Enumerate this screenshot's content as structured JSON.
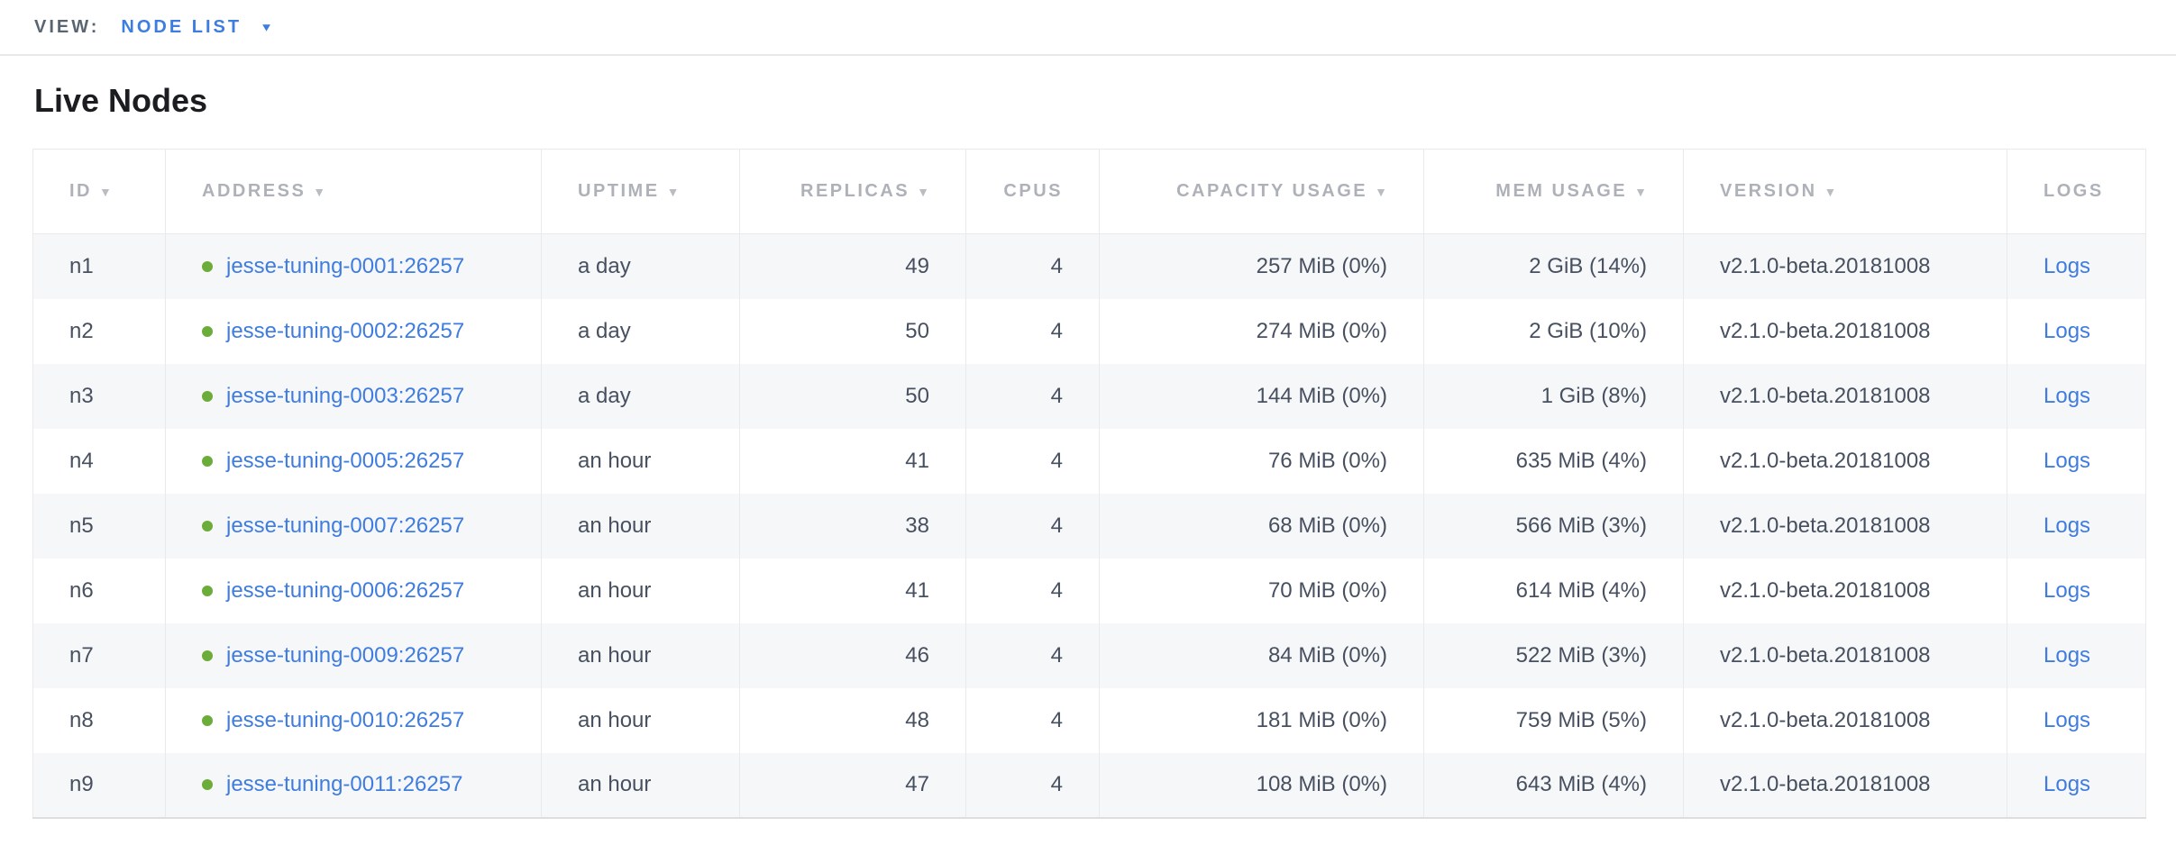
{
  "view_bar": {
    "label": "VIEW:",
    "selected": "NODE LIST"
  },
  "page": {
    "title": "Live Nodes"
  },
  "icons": {
    "sort": "▼",
    "dropdown": "▼",
    "status_dot": "live-green-dot"
  },
  "colors": {
    "accent_blue": "#3e7ce0",
    "live_green": "#6cac3a",
    "header_gray": "#aeb2b8",
    "body_text": "#475060",
    "title_text": "#1b1d21",
    "view_label": "#5a6572",
    "stripe": "#f6f7f8",
    "border": "#e9eaec"
  },
  "table": {
    "columns": [
      {
        "field": "id",
        "label": "ID",
        "sortable": true,
        "align": "left"
      },
      {
        "field": "address",
        "label": "ADDRESS",
        "sortable": true,
        "align": "left"
      },
      {
        "field": "uptime",
        "label": "UPTIME",
        "sortable": true,
        "align": "left"
      },
      {
        "field": "replicas",
        "label": "REPLICAS",
        "sortable": true,
        "align": "right"
      },
      {
        "field": "cpus",
        "label": "CPUS",
        "sortable": false,
        "align": "right"
      },
      {
        "field": "capacity_usage",
        "label": "CAPACITY USAGE",
        "sortable": true,
        "align": "right"
      },
      {
        "field": "mem_usage",
        "label": "MEM USAGE",
        "sortable": true,
        "align": "right"
      },
      {
        "field": "version",
        "label": "VERSION",
        "sortable": true,
        "align": "left"
      },
      {
        "field": "logs",
        "label": "LOGS",
        "sortable": false,
        "align": "left"
      }
    ],
    "rows": [
      {
        "id": "n1",
        "address": "jesse-tuning-0001:26257",
        "uptime": "a day",
        "replicas": "49",
        "cpus": "4",
        "capacity_usage": "257 MiB (0%)",
        "mem_usage": "2 GiB (14%)",
        "version": "v2.1.0-beta.20181008",
        "logs": "Logs"
      },
      {
        "id": "n2",
        "address": "jesse-tuning-0002:26257",
        "uptime": "a day",
        "replicas": "50",
        "cpus": "4",
        "capacity_usage": "274 MiB (0%)",
        "mem_usage": "2 GiB (10%)",
        "version": "v2.1.0-beta.20181008",
        "logs": "Logs"
      },
      {
        "id": "n3",
        "address": "jesse-tuning-0003:26257",
        "uptime": "a day",
        "replicas": "50",
        "cpus": "4",
        "capacity_usage": "144 MiB (0%)",
        "mem_usage": "1 GiB (8%)",
        "version": "v2.1.0-beta.20181008",
        "logs": "Logs"
      },
      {
        "id": "n4",
        "address": "jesse-tuning-0005:26257",
        "uptime": "an hour",
        "replicas": "41",
        "cpus": "4",
        "capacity_usage": "76 MiB (0%)",
        "mem_usage": "635 MiB (4%)",
        "version": "v2.1.0-beta.20181008",
        "logs": "Logs"
      },
      {
        "id": "n5",
        "address": "jesse-tuning-0007:26257",
        "uptime": "an hour",
        "replicas": "38",
        "cpus": "4",
        "capacity_usage": "68 MiB (0%)",
        "mem_usage": "566 MiB (3%)",
        "version": "v2.1.0-beta.20181008",
        "logs": "Logs"
      },
      {
        "id": "n6",
        "address": "jesse-tuning-0006:26257",
        "uptime": "an hour",
        "replicas": "41",
        "cpus": "4",
        "capacity_usage": "70 MiB (0%)",
        "mem_usage": "614 MiB (4%)",
        "version": "v2.1.0-beta.20181008",
        "logs": "Logs"
      },
      {
        "id": "n7",
        "address": "jesse-tuning-0009:26257",
        "uptime": "an hour",
        "replicas": "46",
        "cpus": "4",
        "capacity_usage": "84 MiB (0%)",
        "mem_usage": "522 MiB (3%)",
        "version": "v2.1.0-beta.20181008",
        "logs": "Logs"
      },
      {
        "id": "n8",
        "address": "jesse-tuning-0010:26257",
        "uptime": "an hour",
        "replicas": "48",
        "cpus": "4",
        "capacity_usage": "181 MiB (0%)",
        "mem_usage": "759 MiB (5%)",
        "version": "v2.1.0-beta.20181008",
        "logs": "Logs"
      },
      {
        "id": "n9",
        "address": "jesse-tuning-0011:26257",
        "uptime": "an hour",
        "replicas": "47",
        "cpus": "4",
        "capacity_usage": "108 MiB (0%)",
        "mem_usage": "643 MiB (4%)",
        "version": "v2.1.0-beta.20181008",
        "logs": "Logs"
      }
    ]
  }
}
